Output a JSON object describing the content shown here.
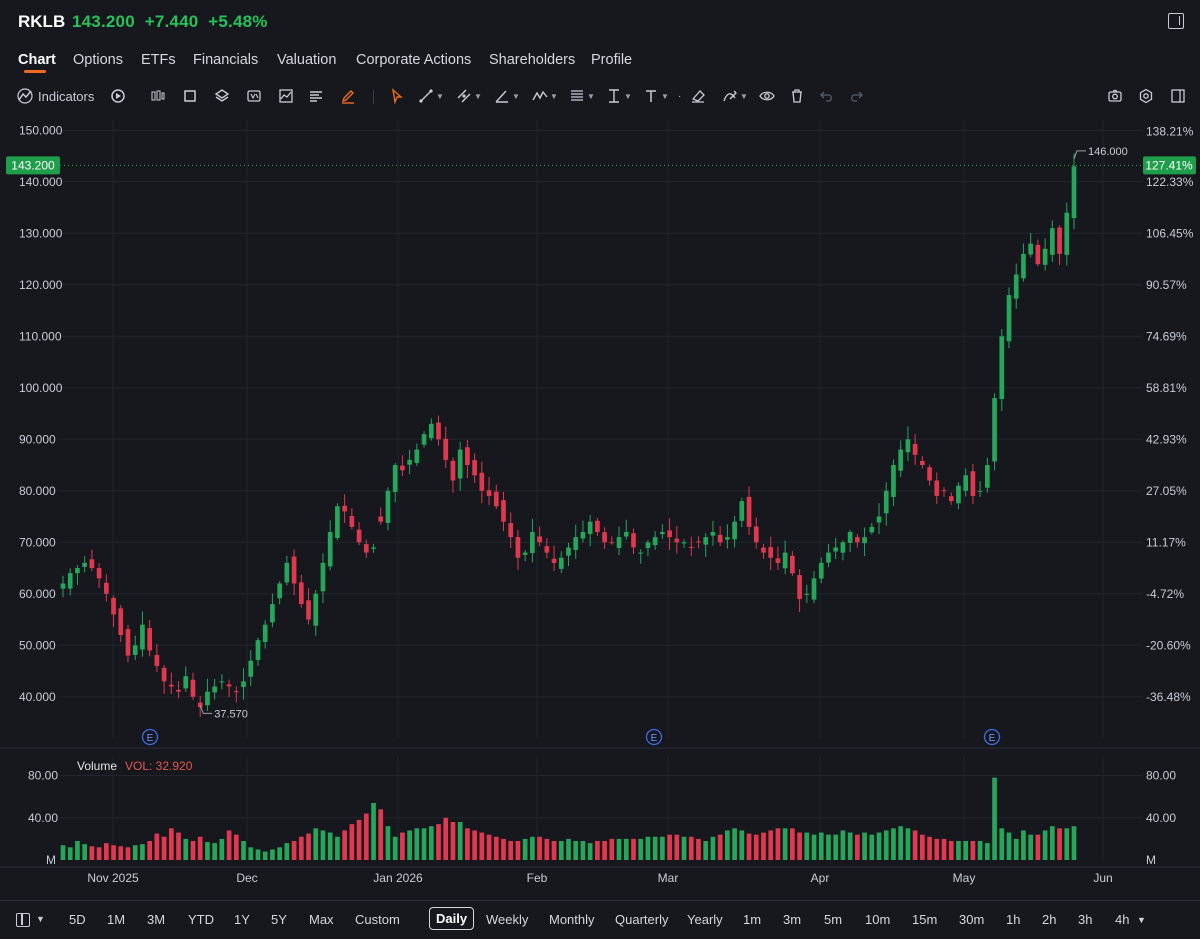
{
  "header": {
    "symbol": "RKLB",
    "price": "143.200",
    "change": "+7.440",
    "change_pct": "+5.48%",
    "change_color": "#26c15a"
  },
  "tabs": [
    {
      "label": "Chart",
      "active": true
    },
    {
      "label": "Options"
    },
    {
      "label": "ETFs"
    },
    {
      "label": "Financials"
    },
    {
      "label": "Valuation"
    },
    {
      "label": "Corporate Actions"
    },
    {
      "label": "Shareholders"
    },
    {
      "label": "Profile"
    }
  ],
  "toolbar": {
    "indicators_label": "Indicators",
    "accent": "#f26b1d"
  },
  "chart_data": {
    "type": "candlestick",
    "symbol": "RKLB",
    "y_axis_left": [
      "150.000",
      "140.000",
      "130.000",
      "120.000",
      "110.000",
      "100.000",
      "90.000",
      "80.000",
      "70.000",
      "60.000",
      "50.000",
      "40.000"
    ],
    "y_axis_right_pct": [
      "138.21%",
      "122.33%",
      "106.45%",
      "90.57%",
      "74.69%",
      "58.81%",
      "42.93%",
      "27.05%",
      "11.17%",
      "-4.72%",
      "-20.60%",
      "-36.48%"
    ],
    "ylim": [
      32,
      152
    ],
    "x_ticks": [
      "Nov 2025",
      "Dec",
      "Jan 2026",
      "Feb",
      "Mar",
      "Apr",
      "May",
      "Jun"
    ],
    "last_price_label": "143.200",
    "last_pct_label": "127.41%",
    "high_label": "146.000",
    "low_label": "37.570",
    "earnings_marker": "E",
    "earnings_marker_count": 3,
    "up_color": "#26a65b",
    "down_color": "#e0384e",
    "grid": true,
    "closes": [
      62,
      64,
      65,
      66,
      65,
      63,
      60,
      56,
      52,
      48,
      50,
      54,
      49,
      46,
      43,
      42,
      41,
      44,
      40,
      38,
      41,
      42,
      43,
      42,
      41,
      43,
      47,
      51,
      54,
      58,
      62,
      66,
      62,
      58,
      55,
      60,
      66,
      72,
      77,
      76,
      73,
      70,
      68,
      69,
      74,
      80,
      85,
      84,
      86,
      88,
      91,
      93,
      90,
      86,
      82,
      88,
      85,
      83,
      80,
      79,
      77,
      74,
      71,
      67,
      68,
      72,
      70,
      68,
      66,
      67,
      69,
      71,
      72,
      74,
      72,
      70,
      70,
      71,
      72,
      69,
      68,
      70,
      71,
      72,
      71,
      70,
      70,
      69,
      70,
      71,
      72,
      70,
      71,
      74,
      78,
      73,
      70,
      68,
      67,
      66,
      68,
      64,
      59,
      60,
      63,
      66,
      68,
      69,
      70,
      72,
      70,
      71,
      73,
      75,
      80,
      85,
      88,
      90,
      87,
      85,
      82,
      79,
      80,
      78,
      81,
      83,
      79,
      80,
      85,
      98,
      110,
      118,
      122,
      126,
      128,
      124,
      127,
      131,
      126,
      134,
      143
    ],
    "volume_axis": [
      "80.00",
      "40.00",
      "M"
    ],
    "volume_label": "Volume",
    "volume_value": "VOL: 32.920",
    "volume_ylim": [
      0,
      90
    ],
    "volumes": [
      14,
      12,
      18,
      15,
      13,
      12,
      16,
      14,
      13,
      12,
      14,
      15,
      18,
      25,
      22,
      30,
      26,
      20,
      18,
      22,
      17,
      16,
      20,
      28,
      24,
      18,
      12,
      10,
      8,
      10,
      12,
      16,
      18,
      22,
      25,
      30,
      28,
      26,
      22,
      28,
      34,
      38,
      44,
      54,
      48,
      32,
      22,
      26,
      28,
      30,
      30,
      32,
      34,
      40,
      36,
      36,
      30,
      28,
      26,
      24,
      22,
      20,
      18,
      18,
      20,
      22,
      22,
      20,
      18,
      18,
      20,
      18,
      18,
      16,
      18,
      18,
      20,
      20,
      20,
      20,
      20,
      22,
      22,
      22,
      24,
      24,
      22,
      22,
      20,
      18,
      22,
      24,
      28,
      30,
      28,
      25,
      24,
      26,
      28,
      30,
      30,
      30,
      26,
      26,
      24,
      26,
      24,
      24,
      28,
      26,
      24,
      26,
      24,
      26,
      28,
      30,
      32,
      30,
      28,
      24,
      22,
      20,
      20,
      18,
      18,
      18,
      18,
      18,
      16,
      78,
      30,
      26,
      20,
      28,
      24,
      24,
      28,
      32,
      30,
      30,
      32
    ]
  },
  "timeframes": [
    {
      "label": "5D"
    },
    {
      "label": "1M"
    },
    {
      "label": "3M"
    },
    {
      "label": "YTD"
    },
    {
      "label": "1Y"
    },
    {
      "label": "5Y"
    },
    {
      "label": "Max"
    },
    {
      "label": "Custom"
    },
    {
      "label": "Daily",
      "active": true
    },
    {
      "label": "Weekly"
    },
    {
      "label": "Monthly"
    },
    {
      "label": "Quarterly"
    },
    {
      "label": "Yearly"
    },
    {
      "label": "1m"
    },
    {
      "label": "3m"
    },
    {
      "label": "5m"
    },
    {
      "label": "10m"
    },
    {
      "label": "15m"
    },
    {
      "label": "30m"
    },
    {
      "label": "1h"
    },
    {
      "label": "2h"
    },
    {
      "label": "3h"
    },
    {
      "label": "4h"
    }
  ],
  "icons": {
    "expand": "expand-panel-icon",
    "camera": "camera-icon",
    "settings": "gear-icon",
    "layout": "layout-icon"
  }
}
